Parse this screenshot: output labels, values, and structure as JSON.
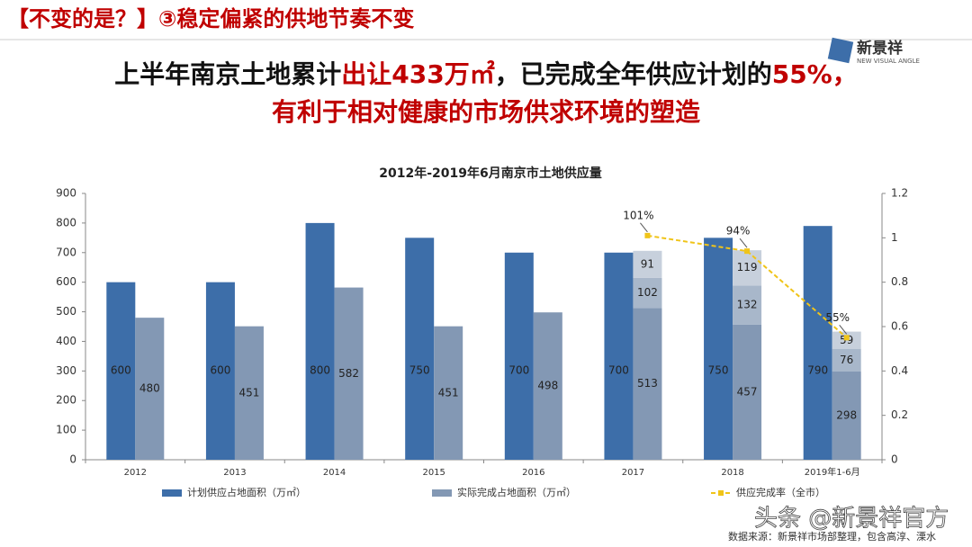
{
  "header": {
    "title": "【不变的是？】③稳定偏紧的供地节奏不变"
  },
  "logo": {
    "name": "新景祥",
    "subtitle": "NEW VISUAL ANGLE"
  },
  "headline": {
    "line1": [
      "上半年南京土地累计",
      "出让433万㎡",
      "，已完成全年供应计划的",
      "55%，"
    ],
    "line2": "有利于相对健康的市场供求环境的塑造"
  },
  "chart_data": {
    "type": "bar",
    "title": "2012年-2019年6月南京市土地供应量",
    "categories": [
      "2012",
      "2013",
      "2014",
      "2015",
      "2016",
      "2017",
      "2018",
      "2019年1-6月"
    ],
    "series": [
      {
        "name": "计划供应占地面积（万㎡）",
        "color": "#3d6ea9",
        "values": [
          600,
          600,
          800,
          750,
          700,
          700,
          750,
          790
        ]
      },
      {
        "name": "实际完成占地面积（万㎡）",
        "color": "#8398b4",
        "values": [
          480,
          451,
          582,
          451,
          498,
          513,
          457,
          298
        ],
        "stack": "actual"
      },
      {
        "color": "#a8b7ca",
        "values": [
          null,
          null,
          null,
          null,
          null,
          102,
          132,
          76
        ],
        "stack": "actual"
      },
      {
        "color": "#c7d0dc",
        "values": [
          null,
          null,
          null,
          null,
          null,
          91,
          119,
          59
        ],
        "stack": "actual"
      },
      {
        "name": "供应完成率（全市）",
        "type": "line",
        "axis": "y2",
        "color": "#f0c419",
        "values": [
          null,
          null,
          null,
          null,
          null,
          1.01,
          0.94,
          0.55
        ],
        "value_labels": [
          null,
          null,
          null,
          null,
          null,
          "101%",
          "94%",
          "55%"
        ]
      }
    ],
    "ylim": [
      0,
      900
    ],
    "yticks": [
      0,
      100,
      200,
      300,
      400,
      500,
      600,
      700,
      800,
      900
    ],
    "y2lim": [
      0,
      1.2
    ],
    "y2ticks": [
      0,
      0.2,
      0.4,
      0.6,
      0.8,
      1,
      1.2
    ],
    "grid": false
  },
  "footnote": "数据来源：新景祥市场部整理，包含高淳、溧水",
  "watermark": "头条 @新景祥官方"
}
